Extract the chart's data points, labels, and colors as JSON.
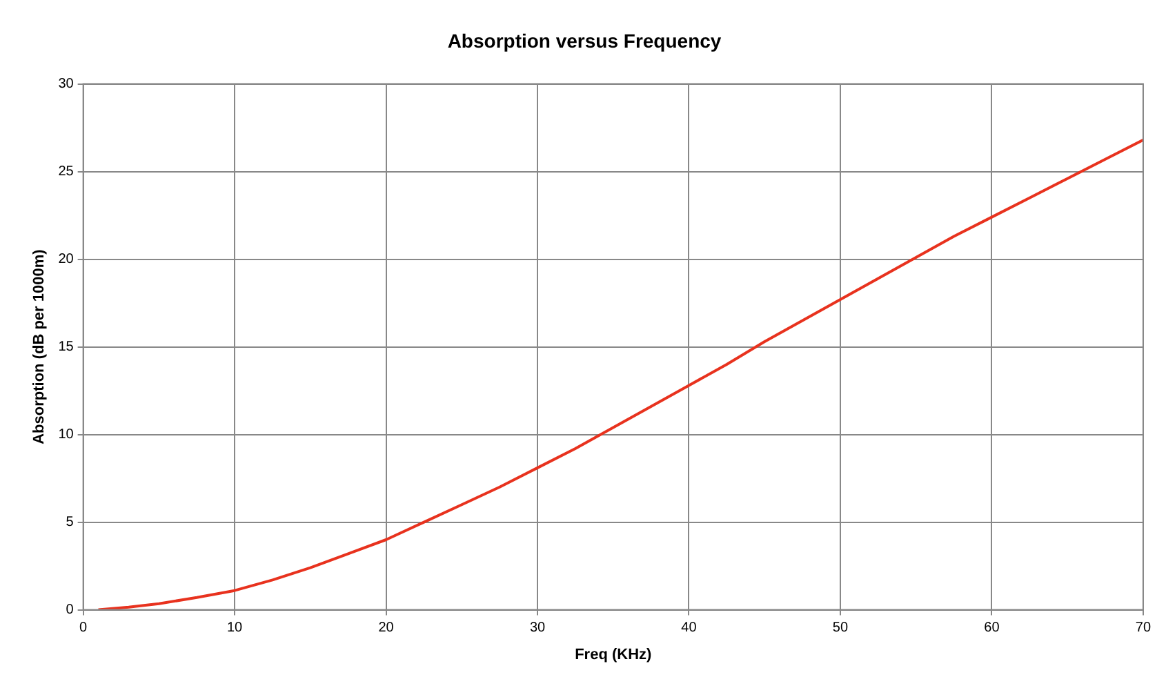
{
  "chart_data": {
    "type": "line",
    "title": "Absorption versus Frequency",
    "xlabel": "Freq (KHz)",
    "ylabel": "Absorption (dB per 1000m)",
    "x": [
      1,
      3,
      5,
      7.5,
      10,
      12.5,
      15,
      17.5,
      20,
      22.5,
      25,
      27.5,
      30,
      32.5,
      35,
      37.5,
      40,
      42.5,
      45,
      47.5,
      50,
      52.5,
      55,
      57.5,
      60,
      62.5,
      65,
      67.5,
      70
    ],
    "series": [
      {
        "color": "#e8321e",
        "values": [
          0,
          0.15,
          0.35,
          0.7,
          1.1,
          1.7,
          2.4,
          3.2,
          4.0,
          5.0,
          6.0,
          7.0,
          8.1,
          9.2,
          10.4,
          11.6,
          12.8,
          14.0,
          15.3,
          16.5,
          17.7,
          18.9,
          20.1,
          21.3,
          22.4,
          23.5,
          24.6,
          25.7,
          26.8
        ]
      }
    ],
    "xlim": [
      0,
      70
    ],
    "xticks": [
      0,
      10,
      20,
      30,
      40,
      50,
      60,
      70
    ],
    "ylim": [
      0,
      30
    ],
    "yticks": [
      0,
      5,
      10,
      15,
      20,
      25,
      30
    ],
    "grid": true,
    "legend": false,
    "marker": "none",
    "line_style": "solid"
  }
}
